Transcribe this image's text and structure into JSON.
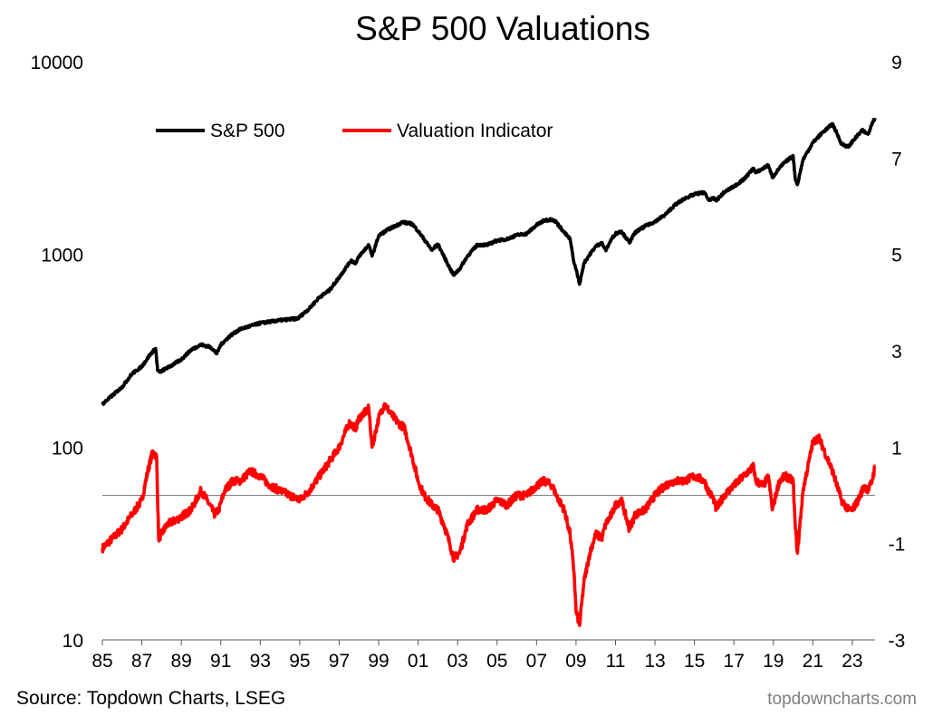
{
  "chart_data": {
    "type": "line",
    "title": "S&P 500 Valuations",
    "x_ticks": [
      "85",
      "87",
      "89",
      "91",
      "93",
      "95",
      "97",
      "99",
      "01",
      "03",
      "05",
      "07",
      "09",
      "11",
      "13",
      "15",
      "17",
      "19",
      "21",
      "23"
    ],
    "x_range": [
      1985.0,
      2024.15
    ],
    "left_axis": {
      "scale": "log",
      "range": [
        10,
        10000
      ],
      "ticks": [
        "10000",
        "1000",
        "100",
        "10"
      ]
    },
    "right_axis": {
      "scale": "linear",
      "range": [
        -3,
        9
      ],
      "ticks": [
        "9",
        "7",
        "5",
        "3",
        "1",
        "-1",
        "-3"
      ]
    },
    "reference_line": {
      "axis": "right",
      "value": 0
    },
    "legend": [
      "S&P 500",
      "Valuation Indicator"
    ],
    "series": [
      {
        "name": "S&P 500",
        "axis": "left",
        "color": "#000000",
        "x": [
          1985.0,
          1985.5,
          1986.0,
          1986.5,
          1987.0,
          1987.4,
          1987.7,
          1987.8,
          1987.9,
          1988.5,
          1989.0,
          1989.5,
          1990.0,
          1990.5,
          1990.8,
          1991.0,
          1991.5,
          1992.0,
          1993.0,
          1994.0,
          1994.9,
          1995.5,
          1996.0,
          1996.5,
          1997.0,
          1997.6,
          1997.85,
          1998.0,
          1998.5,
          1998.67,
          1999.0,
          1999.5,
          2000.0,
          2000.2,
          2000.7,
          2001.0,
          2001.3,
          2001.7,
          2002.0,
          2002.6,
          2002.8,
          2003.1,
          2003.5,
          2004.0,
          2004.5,
          2005.0,
          2005.5,
          2006.0,
          2006.5,
          2007.0,
          2007.4,
          2007.8,
          2008.0,
          2008.4,
          2008.7,
          2008.9,
          2009.0,
          2009.18,
          2009.4,
          2009.7,
          2010.0,
          2010.3,
          2010.5,
          2010.8,
          2011.0,
          2011.3,
          2011.7,
          2012.0,
          2012.5,
          2013.0,
          2013.5,
          2014.0,
          2014.5,
          2015.0,
          2015.5,
          2015.7,
          2016.0,
          2016.1,
          2016.5,
          2017.0,
          2017.5,
          2018.0,
          2018.1,
          2018.5,
          2018.75,
          2018.95,
          2019.3,
          2019.5,
          2020.0,
          2020.1,
          2020.22,
          2020.5,
          2021.0,
          2021.5,
          2022.0,
          2022.45,
          2022.8,
          2023.0,
          2023.5,
          2023.8,
          2024.0,
          2024.15
        ],
        "values": [
          167,
          185,
          205,
          240,
          262,
          300,
          325,
          250,
          245,
          265,
          285,
          320,
          340,
          330,
          305,
          340,
          380,
          410,
          440,
          455,
          465,
          525,
          600,
          650,
          760,
          930,
          900,
          975,
          1120,
          980,
          1250,
          1350,
          1430,
          1470,
          1440,
          1320,
          1200,
          1050,
          1130,
          850,
          780,
          840,
          980,
          1120,
          1120,
          1180,
          1200,
          1260,
          1280,
          1420,
          1500,
          1520,
          1470,
          1300,
          1200,
          900,
          840,
          700,
          900,
          1000,
          1100,
          1150,
          1050,
          1200,
          1280,
          1320,
          1150,
          1300,
          1400,
          1480,
          1600,
          1800,
          1950,
          2050,
          2100,
          1920,
          1950,
          1900,
          2100,
          2250,
          2450,
          2800,
          2650,
          2800,
          2900,
          2500,
          2800,
          2950,
          3250,
          2500,
          2300,
          3100,
          3800,
          4300,
          4750,
          3750,
          3600,
          3850,
          4400,
          4200,
          4800,
          5100
        ]
      },
      {
        "name": "Valuation Indicator",
        "axis": "right",
        "color": "#ff0000",
        "x": [
          1985.0,
          1985.5,
          1986.0,
          1986.5,
          1987.0,
          1987.3,
          1987.55,
          1987.75,
          1987.85,
          1988.3,
          1988.8,
          1989.5,
          1990.0,
          1990.3,
          1990.7,
          1990.9,
          1991.2,
          1991.6,
          1992.0,
          1992.5,
          1993.0,
          1993.5,
          1994.0,
          1994.5,
          1995.0,
          1995.5,
          1996.0,
          1996.5,
          1997.0,
          1997.5,
          1997.85,
          1998.0,
          1998.5,
          1998.67,
          1999.0,
          1999.3,
          1999.6,
          2000.0,
          2000.3,
          2000.7,
          2001.0,
          2001.3,
          2001.7,
          2002.0,
          2002.3,
          2002.6,
          2002.8,
          2003.1,
          2003.5,
          2004.0,
          2004.5,
          2005.0,
          2005.5,
          2006.0,
          2006.5,
          2007.0,
          2007.4,
          2007.8,
          2008.0,
          2008.4,
          2008.7,
          2008.9,
          2009.0,
          2009.18,
          2009.4,
          2009.7,
          2010.0,
          2010.3,
          2010.5,
          2010.8,
          2011.0,
          2011.3,
          2011.7,
          2012.0,
          2012.5,
          2013.0,
          2013.5,
          2014.0,
          2014.5,
          2015.0,
          2015.5,
          2015.7,
          2016.0,
          2016.1,
          2016.5,
          2017.0,
          2017.5,
          2018.0,
          2018.1,
          2018.5,
          2018.75,
          2018.95,
          2019.3,
          2019.6,
          2020.0,
          2020.1,
          2020.22,
          2020.5,
          2020.8,
          2021.0,
          2021.3,
          2021.6,
          2022.0,
          2022.45,
          2022.8,
          2023.0,
          2023.3,
          2023.6,
          2023.8,
          2024.0,
          2024.15
        ],
        "values": [
          -1.1,
          -0.9,
          -0.7,
          -0.4,
          -0.1,
          0.5,
          0.9,
          0.8,
          -0.9,
          -0.6,
          -0.5,
          -0.3,
          0.1,
          -0.1,
          -0.4,
          -0.3,
          0.1,
          0.3,
          0.3,
          0.5,
          0.4,
          0.2,
          0.1,
          0.0,
          -0.1,
          0.1,
          0.4,
          0.7,
          1.0,
          1.5,
          1.4,
          1.6,
          1.8,
          1.0,
          1.6,
          1.9,
          1.7,
          1.5,
          1.4,
          0.8,
          0.3,
          0.0,
          -0.2,
          -0.3,
          -0.6,
          -1.0,
          -1.3,
          -1.2,
          -0.6,
          -0.3,
          -0.3,
          -0.1,
          -0.2,
          0.0,
          0.0,
          0.2,
          0.3,
          0.2,
          0.0,
          -0.3,
          -0.8,
          -1.6,
          -2.4,
          -2.7,
          -1.8,
          -1.2,
          -0.8,
          -0.9,
          -0.6,
          -0.4,
          -0.2,
          -0.1,
          -0.7,
          -0.4,
          -0.3,
          0.0,
          0.2,
          0.3,
          0.3,
          0.4,
          0.3,
          0.1,
          -0.1,
          -0.3,
          0.0,
          0.2,
          0.4,
          0.6,
          0.3,
          0.2,
          0.4,
          -0.3,
          0.3,
          0.4,
          0.3,
          -0.6,
          -1.2,
          0.1,
          0.7,
          1.1,
          1.2,
          0.9,
          0.5,
          -0.1,
          -0.3,
          -0.3,
          -0.1,
          0.2,
          0.1,
          0.3,
          0.6
        ]
      }
    ]
  },
  "footer": {
    "source": "Source: Topdown Charts, LSEG",
    "credit": "topdowncharts.com"
  }
}
